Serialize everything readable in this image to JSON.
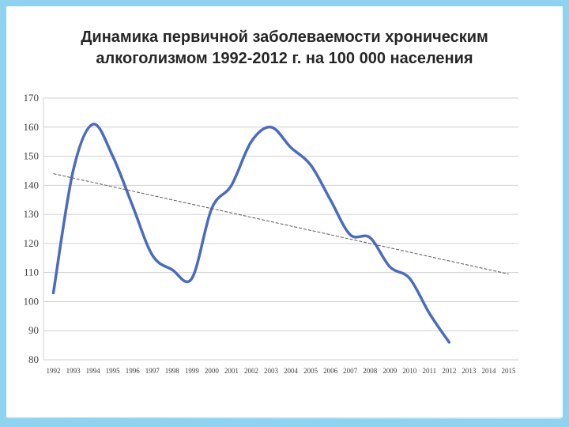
{
  "title_line1": "Динамика первичной заболеваемости хроническим",
  "title_line2": "алкоголизмом 1992-2012 г. на 100 000 населения",
  "chart_data": {
    "type": "line",
    "title": "Динамика первичной заболеваемости хроническим алкоголизмом 1992-2012 г. на 100 000 населения",
    "xlabel": "",
    "ylabel": "",
    "categories": [
      "1992",
      "1993",
      "1994",
      "1995",
      "1996",
      "1997",
      "1998",
      "1999",
      "2000",
      "2001",
      "2002",
      "2003",
      "2004",
      "2005",
      "2006",
      "2007",
      "2008",
      "2009",
      "2010",
      "2011",
      "2012",
      "2013",
      "2014",
      "2015"
    ],
    "y_ticks": [
      80,
      90,
      100,
      110,
      120,
      130,
      140,
      150,
      160,
      170
    ],
    "ylim": [
      80,
      170
    ],
    "grid": true,
    "legend": "none",
    "series": [
      {
        "values": [
          103,
          145,
          161,
          150,
          133,
          116,
          111,
          108,
          132,
          140,
          155,
          160,
          153,
          147,
          135,
          123,
          122,
          112,
          108,
          96,
          86,
          null,
          null,
          null
        ],
        "color": "#4a6bbf",
        "style": "smooth"
      },
      {
        "trendline": true,
        "values": [
          144,
          142.5,
          141,
          139.5,
          138,
          136.5,
          135,
          133.5,
          132,
          130.5,
          129,
          127.5,
          126,
          124.5,
          123,
          121.5,
          120,
          118.5,
          117,
          115.5,
          114,
          112.5,
          111,
          109.5
        ],
        "color": "#595959",
        "style": "dashed"
      }
    ]
  }
}
